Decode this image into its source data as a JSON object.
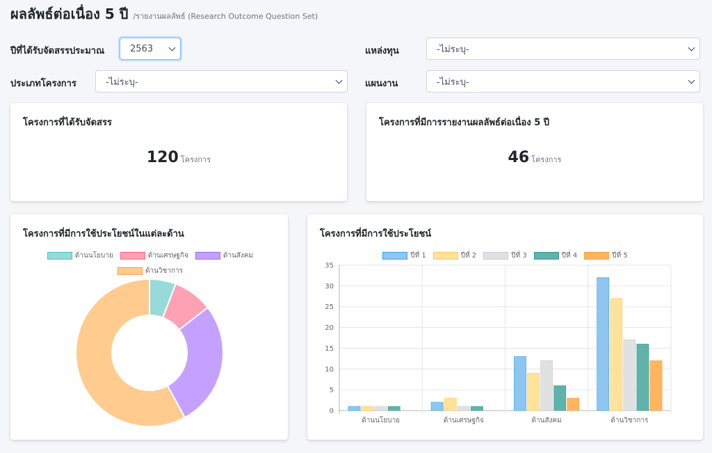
{
  "header": {
    "title": "ผลลัพธ์ต่อเนื่อง 5 ปี",
    "subtitle": "/รายงานผลลัพธ์ (Research Outcome Question Set)"
  },
  "filters": {
    "budget_year": {
      "label": "ปีที่ได้รับจัดสรรประมาณ",
      "value": "2563"
    },
    "fund_source": {
      "label": "แหล่งทุน",
      "value": "-ไม่ระบุ-"
    },
    "project_type": {
      "label": "ประเภทโครงการ",
      "value": "-ไม่ระบุ-"
    },
    "plan": {
      "label": "แผนงาน",
      "value": "-ไม่ระบุ-"
    }
  },
  "kpis": {
    "allocated": {
      "title": "โครงการที่ได้รับจัดสรร",
      "value": "120",
      "unit": "โครงการ"
    },
    "reported": {
      "title": "โครงการที่มีการรายงานผลลัพธ์ต่อเนื่อง 5 ปี",
      "value": "46",
      "unit": "โครงการ"
    }
  },
  "chart_data": [
    {
      "type": "pie",
      "title": "โครงการที่มีการใช้ประโยชน์ในแต่ละด้าน",
      "labels": [
        "ด้านนโยบาย",
        "ด้านเศรษฐกิจ",
        "ด้านสังคม",
        "ด้านวิชาการ"
      ],
      "values": [
        4,
        6,
        19,
        40
      ],
      "colors": [
        "#96dbd9",
        "#ffa1b5",
        "#c4a1ff",
        "#ffcb8f"
      ],
      "borders": [
        "#4bc0c0",
        "#ff6384",
        "#9966ff",
        "#ff9f40"
      ],
      "donut": true,
      "legend": "top"
    },
    {
      "type": "bar",
      "title": "โครงการที่มีการใช้ประโยชน์",
      "categories": [
        "ด้านนโยบาย",
        "ด้านเศรษฐกิจ",
        "ด้านสังคม",
        "ด้านวิชาการ"
      ],
      "series": [
        {
          "name": "ปีที่ 1",
          "values": [
            1,
            2,
            13,
            32
          ],
          "color": "#8ec6f0",
          "border": "#36a2eb"
        },
        {
          "name": "ปีที่ 2",
          "values": [
            1,
            3,
            9,
            27
          ],
          "color": "#ffe29b",
          "border": "#ffcd56"
        },
        {
          "name": "ปีที่ 3",
          "values": [
            1,
            1,
            12,
            17
          ],
          "color": "#e0e1e3",
          "border": "#c9cbcf"
        },
        {
          "name": "ปีที่ 4",
          "values": [
            1,
            1,
            6,
            16
          ],
          "color": "#5fb3aa",
          "border": "#3b9a90"
        },
        {
          "name": "ปีที่ 5",
          "values": [
            0,
            0,
            3,
            12
          ],
          "color": "#ffb55f",
          "border": "#ff9f40"
        }
      ],
      "yticks": [
        0,
        5,
        10,
        15,
        20,
        25,
        30,
        35
      ],
      "ylim": [
        0,
        35
      ],
      "grid": true,
      "legend": "top"
    }
  ]
}
